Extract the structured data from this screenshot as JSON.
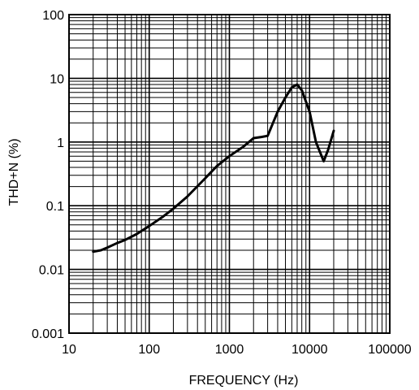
{
  "chart_data": {
    "type": "line",
    "title": "",
    "xlabel": "FREQUENCY (Hz)",
    "ylabel": "THD+N (%)",
    "xscale": "log",
    "yscale": "log",
    "xlim": [
      10,
      100000
    ],
    "ylim": [
      0.001,
      100
    ],
    "grid": true,
    "x_ticks": [
      "10",
      "100",
      "1000",
      "10000",
      "100000"
    ],
    "y_ticks": [
      "0.001",
      "0.01",
      "0.1",
      "1",
      "10",
      "100"
    ],
    "series": [
      {
        "color": "#000000",
        "x": [
          20,
          25,
          30,
          40,
          50,
          70,
          100,
          150,
          200,
          300,
          500,
          700,
          1000,
          1500,
          2000,
          2500,
          3000,
          4000,
          5000,
          6000,
          7000,
          8000,
          10000,
          12000,
          15000,
          17000,
          20000
        ],
        "y": [
          0.019,
          0.02,
          0.022,
          0.026,
          0.029,
          0.036,
          0.048,
          0.068,
          0.09,
          0.14,
          0.27,
          0.42,
          0.6,
          0.85,
          1.15,
          1.2,
          1.25,
          3.0,
          5.0,
          7.2,
          8.0,
          6.5,
          3.0,
          1.0,
          0.5,
          0.75,
          1.5
        ]
      }
    ]
  }
}
